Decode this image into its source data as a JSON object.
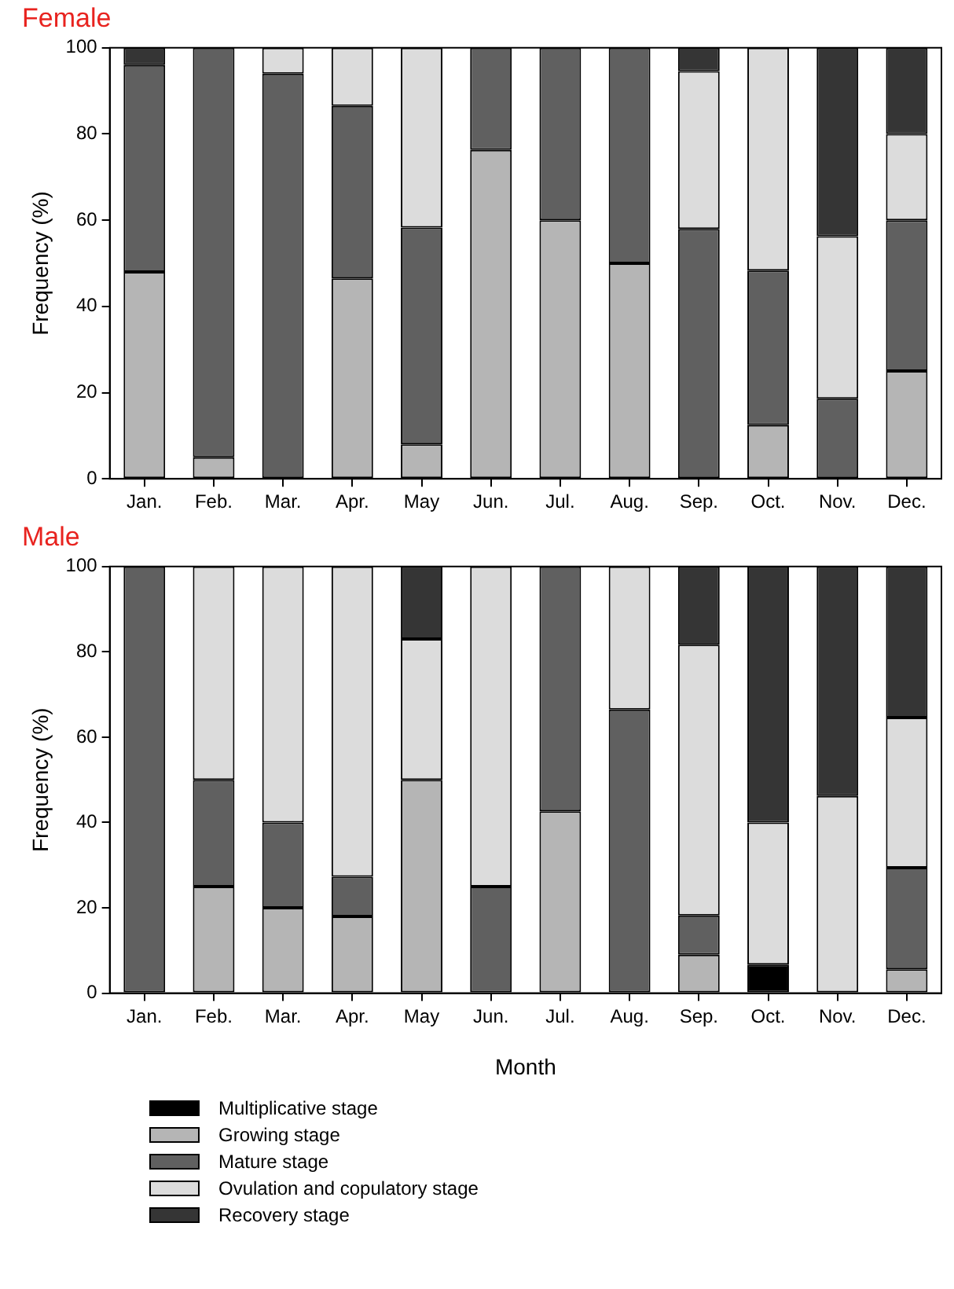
{
  "chart_data": [
    {
      "type": "bar",
      "title": "Female",
      "ylabel": "Frequency (%)",
      "stacked": true,
      "grid": false,
      "legend": false,
      "ylim": [
        0,
        100
      ],
      "yticks": [
        0,
        20,
        40,
        60,
        80,
        100
      ],
      "categories": [
        "Jan.",
        "Feb.",
        "Mar.",
        "Apr.",
        "May",
        "Jun.",
        "Jul.",
        "Aug.",
        "Sep.",
        "Oct.",
        "Nov.",
        "Dec."
      ],
      "series": [
        {
          "color": "#b5b5b5",
          "values": [
            48,
            5,
            null,
            46.5,
            8,
            76.3,
            60,
            50,
            null,
            12.5,
            null,
            25
          ]
        },
        {
          "color": "#606060",
          "values": [
            48,
            95,
            94,
            40,
            50.3,
            23.7,
            40,
            50,
            58,
            35.8,
            18.6,
            35
          ]
        },
        {
          "color": "#dcdcdc",
          "values": [
            null,
            null,
            6,
            13.5,
            41.7,
            null,
            null,
            null,
            36.6,
            51.7,
            37.7,
            20
          ]
        },
        {
          "color": "#353535",
          "values": [
            4,
            null,
            null,
            null,
            null,
            null,
            null,
            null,
            5.4,
            null,
            43.7,
            20
          ]
        }
      ]
    },
    {
      "type": "bar",
      "title": "Male",
      "xlabel": "Month",
      "ylabel": "Frequency (%)",
      "stacked": true,
      "grid": false,
      "legend": "bottom",
      "ylim": [
        0,
        100
      ],
      "yticks": [
        0,
        20,
        40,
        60,
        80,
        100
      ],
      "categories": [
        "Jan.",
        "Feb.",
        "Mar.",
        "Apr.",
        "May",
        "Jun.",
        "Jul.",
        "Aug.",
        "Sep.",
        "Oct.",
        "Nov.",
        "Dec."
      ],
      "series": [
        {
          "name": "Multiplicative stage",
          "color": "#000000",
          "values": [
            null,
            null,
            null,
            null,
            null,
            null,
            null,
            null,
            null,
            6.7,
            null,
            null
          ]
        },
        {
          "name": "Growing stage",
          "color": "#b5b5b5",
          "values": [
            null,
            25,
            20,
            18,
            50,
            null,
            42.6,
            null,
            9,
            null,
            null,
            5.6
          ]
        },
        {
          "name": "Mature stage",
          "color": "#606060",
          "values": [
            100,
            25,
            20,
            9.3,
            null,
            25,
            57.4,
            66.5,
            9.2,
            null,
            null,
            23.8
          ]
        },
        {
          "name": "Ovulation and copulatory stage",
          "color": "#dcdcdc",
          "values": [
            null,
            50,
            60,
            72.7,
            33,
            75,
            null,
            33.5,
            63.5,
            33.3,
            46.2,
            35.2
          ]
        },
        {
          "name": "Recovery stage",
          "color": "#353535",
          "values": [
            null,
            null,
            null,
            null,
            17,
            null,
            null,
            null,
            18.3,
            60,
            53.8,
            35.4
          ]
        }
      ]
    }
  ]
}
